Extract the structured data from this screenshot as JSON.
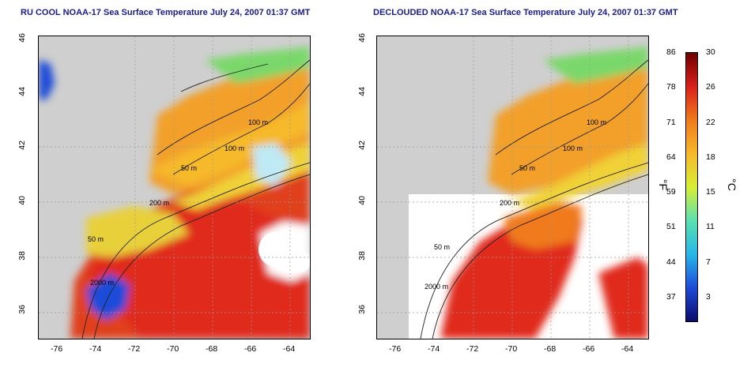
{
  "panels": [
    {
      "title": "RU COOL NOAA-17 Sea Surface Temperature July 24, 2007 01:37 GMT",
      "contour_labels": [
        "100 m",
        "100 m",
        "50 m",
        "200 m",
        "50 m",
        "2000 m"
      ]
    },
    {
      "title": "DECLOUDED NOAA-17 Sea Surface Temperature July 24, 2007 01:37 GMT",
      "contour_labels": [
        "100 m",
        "100 m",
        "50 m",
        "200 m",
        "50 m",
        "2000 m"
      ]
    }
  ],
  "axes": {
    "x_ticks": [
      "-76",
      "-74",
      "-72",
      "-70",
      "-68",
      "-66",
      "-64"
    ],
    "y_ticks": [
      "46",
      "44",
      "42",
      "40",
      "38",
      "36"
    ]
  },
  "colorbar": {
    "fahrenheit_ticks": [
      "86",
      "78",
      "71",
      "64",
      "59",
      "51",
      "44",
      "37"
    ],
    "celsius_ticks": [
      "30",
      "26",
      "22",
      "18",
      "15",
      "11",
      "7",
      "3"
    ],
    "left_unit": "°F",
    "right_unit": "°C",
    "colors": [
      "#0b0b6e",
      "#1f4bd8",
      "#27b7e8",
      "#5be0b0",
      "#d8ee35",
      "#f6b92a",
      "#f07a1c",
      "#d8201a",
      "#6e0000"
    ]
  },
  "colors": {
    "land": "#cfcfcf",
    "cloud": "#ffffff",
    "title": "#1a1a8c"
  }
}
